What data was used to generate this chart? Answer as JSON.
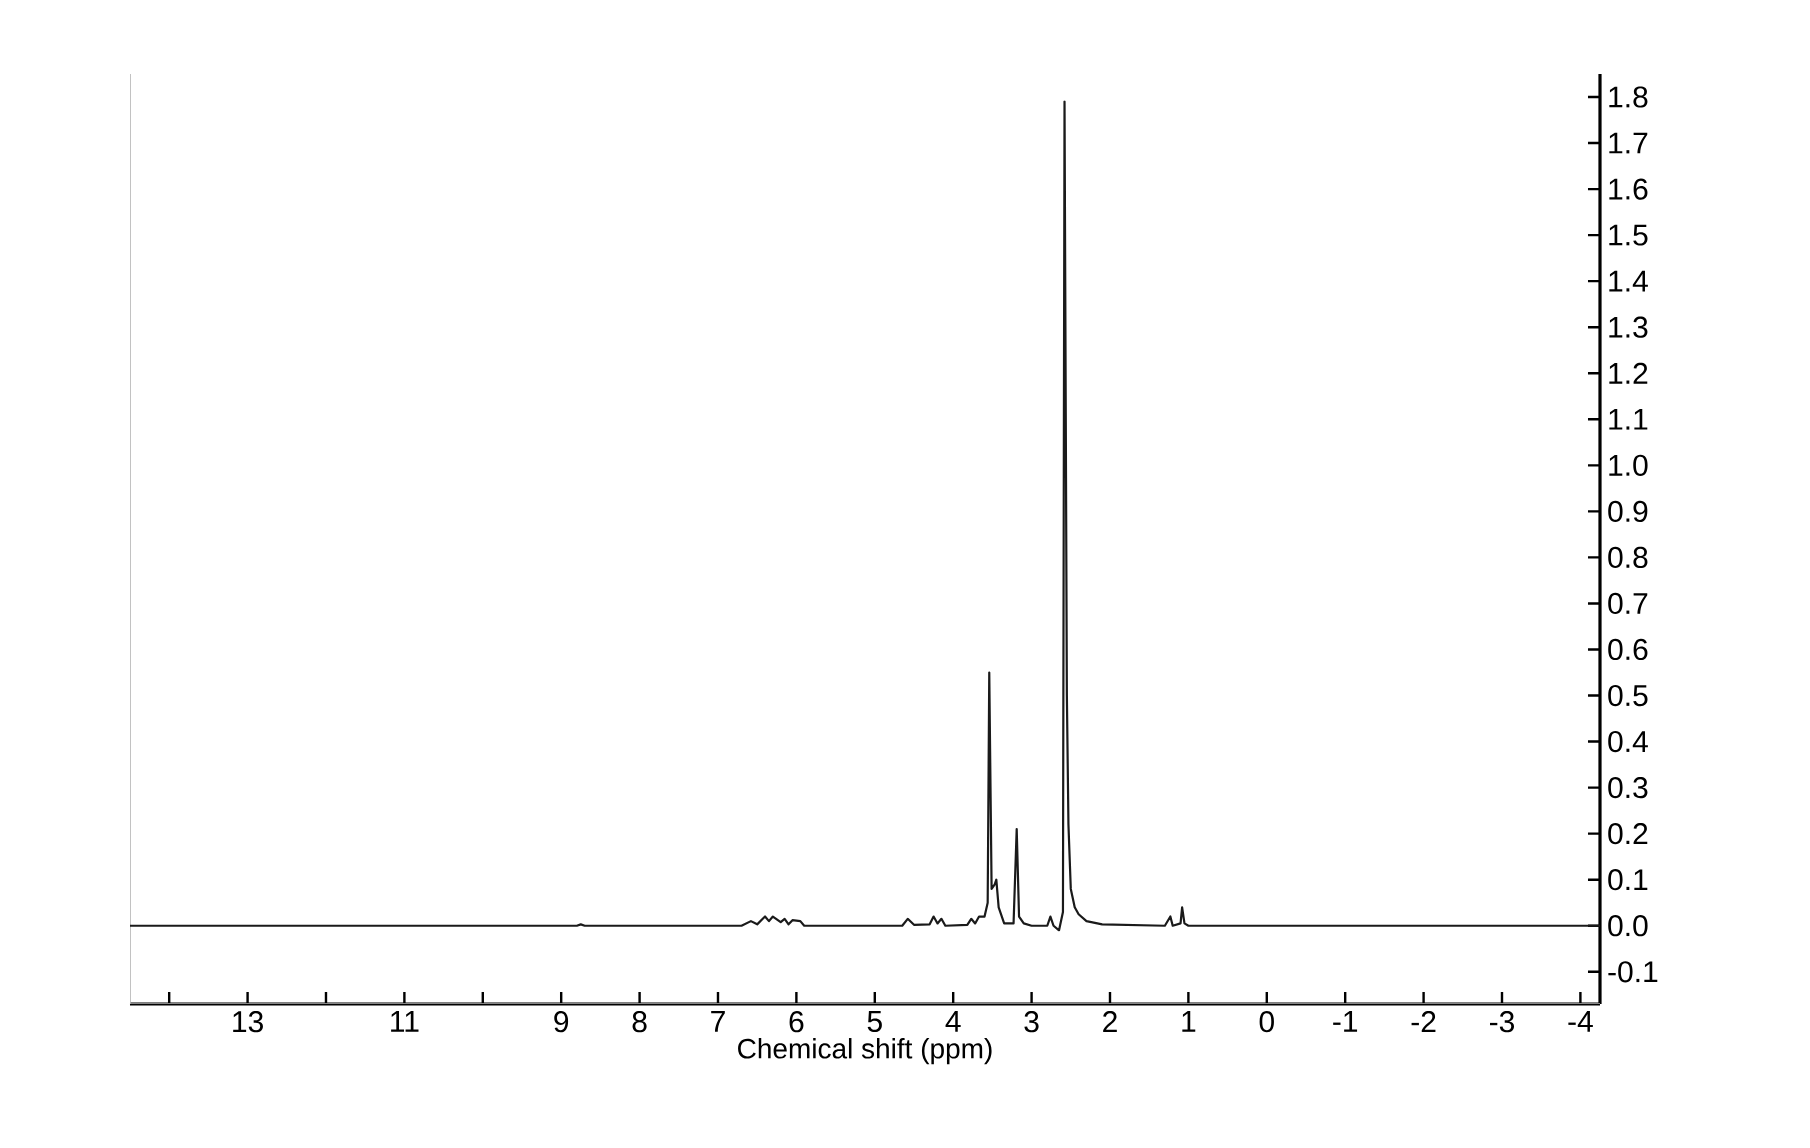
{
  "chart_data": {
    "type": "line",
    "xlabel": "Chemical shift (ppm)",
    "xlim": [
      14.5,
      -4.25
    ],
    "xticks": [
      {
        "value": 14,
        "label": null
      },
      13,
      {
        "value": 12,
        "label": null
      },
      11,
      {
        "value": 10,
        "label": null
      },
      9,
      8,
      7,
      6,
      5,
      4,
      3,
      2,
      1,
      0,
      -1,
      -2,
      -3,
      -4
    ],
    "ylim": [
      -0.17,
      1.85
    ],
    "yticks": [
      -0.1,
      {
        "value": 0,
        "label": "0.0"
      },
      0.1,
      0.2,
      0.3,
      0.4,
      0.5,
      0.6,
      0.7,
      0.8,
      0.9,
      {
        "value": 1,
        "label": "1.0"
      },
      1.1,
      1.2,
      1.3,
      1.4,
      1.5,
      1.6,
      1.7,
      1.8
    ],
    "grid": false,
    "marker": "none",
    "line_style": "solid",
    "series": [
      {
        "color": "#1a1a1a",
        "x": [
          14.5,
          8.8,
          8.75,
          8.7,
          6.7,
          6.58,
          6.5,
          6.4,
          6.35,
          6.3,
          6.2,
          6.15,
          6.1,
          6.05,
          5.95,
          5.9,
          4.65,
          4.58,
          4.5,
          4.3,
          4.25,
          4.2,
          4.15,
          4.1,
          3.82,
          3.77,
          3.72,
          3.67,
          3.6,
          3.56,
          3.54,
          3.51,
          3.47,
          3.45,
          3.42,
          3.35,
          3.23,
          3.19,
          3.16,
          3.1,
          3.0,
          2.8,
          2.76,
          2.72,
          2.65,
          2.6,
          2.58,
          2.55,
          2.53,
          2.5,
          2.45,
          2.4,
          2.3,
          2.1,
          1.3,
          1.23,
          1.2,
          1.1,
          1.08,
          1.05,
          1.0,
          -4.25
        ],
        "values": [
          0,
          0,
          0.003,
          0,
          0,
          0.01,
          0.003,
          0.02,
          0.01,
          0.02,
          0.008,
          0.015,
          0.003,
          0.012,
          0.01,
          0,
          0,
          0.015,
          0.002,
          0.003,
          0.02,
          0.005,
          0.015,
          0,
          0.002,
          0.015,
          0.005,
          0.02,
          0.02,
          0.05,
          0.55,
          0.08,
          0.09,
          0.1,
          0.04,
          0.005,
          0.005,
          0.21,
          0.02,
          0.005,
          0,
          0,
          0.02,
          0,
          -0.01,
          0.03,
          1.79,
          0.5,
          0.22,
          0.08,
          0.04,
          0.025,
          0.01,
          0.003,
          0,
          0.02,
          0,
          0.005,
          0.04,
          0.005,
          0,
          0
        ]
      }
    ]
  }
}
